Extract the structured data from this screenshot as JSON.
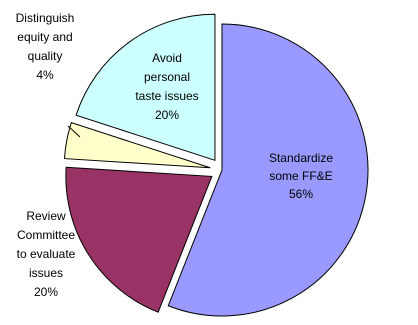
{
  "chart_data": {
    "type": "pie",
    "title": "",
    "slices": [
      {
        "label": "Standardize some FF&E",
        "value": 56,
        "value_label": "56%",
        "color": "#9999ff",
        "exploded": false
      },
      {
        "label": "Review Committee to evaluate issues",
        "value": 20,
        "value_label": "20%",
        "color": "#993366",
        "exploded": true
      },
      {
        "label": "Distinguish equity and quality",
        "value": 4,
        "value_label": "4%",
        "color": "#ffffcc",
        "exploded": true
      },
      {
        "label": "Avoid personal taste issues",
        "value": 20,
        "value_label": "20%",
        "color": "#ccffff",
        "exploded": true
      }
    ],
    "label_lines": [
      [
        "Standardize",
        "some FF&E",
        "56%"
      ],
      [
        "Review",
        "Committee",
        "to evaluate",
        "issues",
        "20%"
      ],
      [
        "Distinguish",
        "equity and",
        "quality",
        "4%"
      ],
      [
        "Avoid",
        "personal",
        "taste issues",
        "20%"
      ]
    ],
    "legend": "none"
  }
}
